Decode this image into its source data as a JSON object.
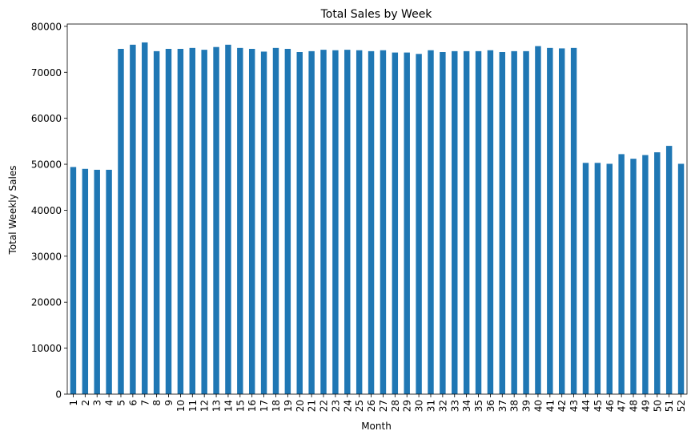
{
  "chart_data": {
    "type": "bar",
    "title": "Total Sales by Week",
    "xlabel": "Month",
    "ylabel": "Total Weekly Sales",
    "ylim": [
      0,
      80500
    ],
    "yticks": [
      0,
      10000,
      20000,
      30000,
      40000,
      50000,
      60000,
      70000,
      80000
    ],
    "grid": false,
    "bar_color": "#1f77b4",
    "categories": [
      "1",
      "2",
      "3",
      "4",
      "5",
      "6",
      "7",
      "8",
      "9",
      "10",
      "11",
      "12",
      "13",
      "14",
      "15",
      "16",
      "17",
      "18",
      "19",
      "20",
      "21",
      "22",
      "23",
      "24",
      "25",
      "26",
      "27",
      "28",
      "29",
      "30",
      "31",
      "32",
      "33",
      "34",
      "35",
      "36",
      "37",
      "38",
      "39",
      "40",
      "41",
      "42",
      "43",
      "44",
      "45",
      "46",
      "47",
      "48",
      "49",
      "50",
      "51",
      "52"
    ],
    "values": [
      49400,
      49000,
      48800,
      48800,
      75100,
      76000,
      76500,
      74600,
      75100,
      75100,
      75300,
      74900,
      75500,
      76000,
      75300,
      75100,
      74500,
      75300,
      75100,
      74400,
      74600,
      74900,
      74800,
      74900,
      74800,
      74600,
      74800,
      74300,
      74300,
      74000,
      74800,
      74400,
      74600,
      74600,
      74600,
      74800,
      74400,
      74600,
      74600,
      75700,
      75300,
      75200,
      75300,
      50300,
      50300,
      50100,
      52200,
      51200,
      52000,
      52600,
      54000,
      50100
    ]
  }
}
